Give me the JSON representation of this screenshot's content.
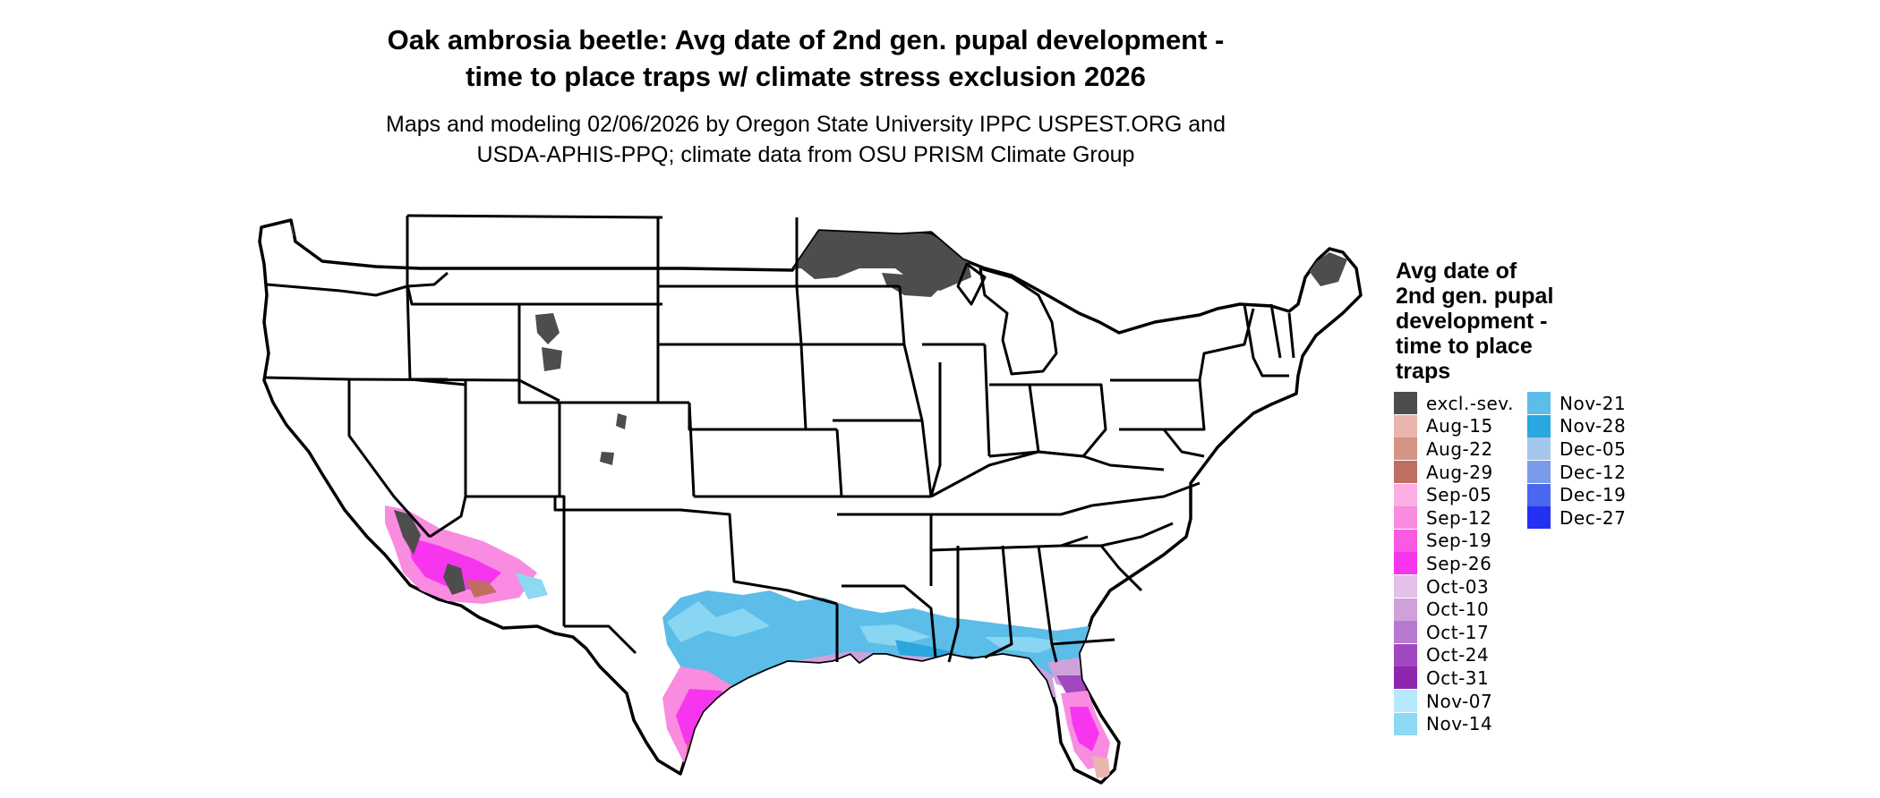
{
  "title_line1": "Oak ambrosia beetle: Avg date of 2nd gen. pupal development -",
  "title_line2": "time to place traps w/ climate stress exclusion 2026",
  "subtitle_line1": "Maps and modeling 02/06/2026 by Oregon State University IPPC USPEST.ORG and",
  "subtitle_line2": "USDA-APHIS-PPQ; climate data from OSU PRISM Climate Group",
  "legend": {
    "title_lines": [
      "Avg date of",
      "2nd gen. pupal",
      "development -",
      "time to place",
      "traps"
    ],
    "items": [
      {
        "label": "excl.-sev.",
        "color": "#4d4d4d"
      },
      {
        "label": "Aug-15",
        "color": "#e8b6ae"
      },
      {
        "label": "Aug-22",
        "color": "#d49584"
      },
      {
        "label": "Aug-29",
        "color": "#bf6e62"
      },
      {
        "label": "Sep-05",
        "color": "#fbaee3"
      },
      {
        "label": "Sep-12",
        "color": "#f98be0"
      },
      {
        "label": "Sep-19",
        "color": "#f85ae2"
      },
      {
        "label": "Sep-26",
        "color": "#f735ef"
      },
      {
        "label": "Oct-03",
        "color": "#e3c1e8"
      },
      {
        "label": "Oct-10",
        "color": "#cfa1da"
      },
      {
        "label": "Oct-17",
        "color": "#b77ad0"
      },
      {
        "label": "Oct-24",
        "color": "#a148c0"
      },
      {
        "label": "Oct-31",
        "color": "#8e27ad"
      },
      {
        "label": "Nov-07",
        "color": "#b5e9fb"
      },
      {
        "label": "Nov-14",
        "color": "#8dd8f2"
      },
      {
        "label": "Nov-21",
        "color": "#5bbde8"
      },
      {
        "label": "Nov-28",
        "color": "#2aa7df"
      },
      {
        "label": "Dec-05",
        "color": "#a4c6ea"
      },
      {
        "label": "Dec-12",
        "color": "#7a9bea"
      },
      {
        "label": "Dec-19",
        "color": "#4a68ef"
      },
      {
        "label": "Dec-27",
        "color": "#2530f5"
      }
    ]
  }
}
